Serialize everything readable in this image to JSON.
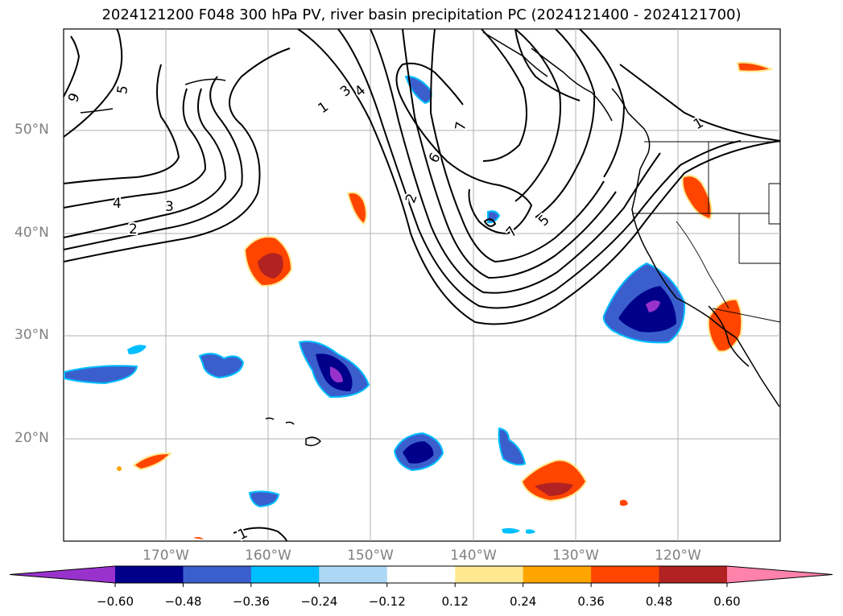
{
  "title": "2024121200 F048 300 hPa PV, river basin precipitation PC (2024121400 - 2024121700)",
  "map": {
    "lat_labels": [
      "50°N",
      "40°N",
      "30°N",
      "20°N"
    ],
    "lon_labels": [
      "170°W",
      "160°W",
      "150°W",
      "140°W",
      "130°W",
      "120°W"
    ],
    "contour_labels": [
      "5",
      "9",
      "4",
      "3",
      "2",
      "1",
      "3",
      "4",
      "7",
      "6",
      "2",
      "7",
      "5",
      "1",
      "1"
    ]
  },
  "colorbar": {
    "ticks": [
      "−0.60",
      "−0.48",
      "−0.36",
      "−0.24",
      "−0.12",
      "0.12",
      "0.24",
      "0.36",
      "0.48",
      "0.60"
    ],
    "colors": [
      "#9932cc",
      "#00008b",
      "#3a5fcd",
      "#00bfff",
      "#add8f5",
      "#ffffff",
      "#ffe88f",
      "#ffa500",
      "#ff4500",
      "#b22222",
      "#ff82ab"
    ]
  }
}
